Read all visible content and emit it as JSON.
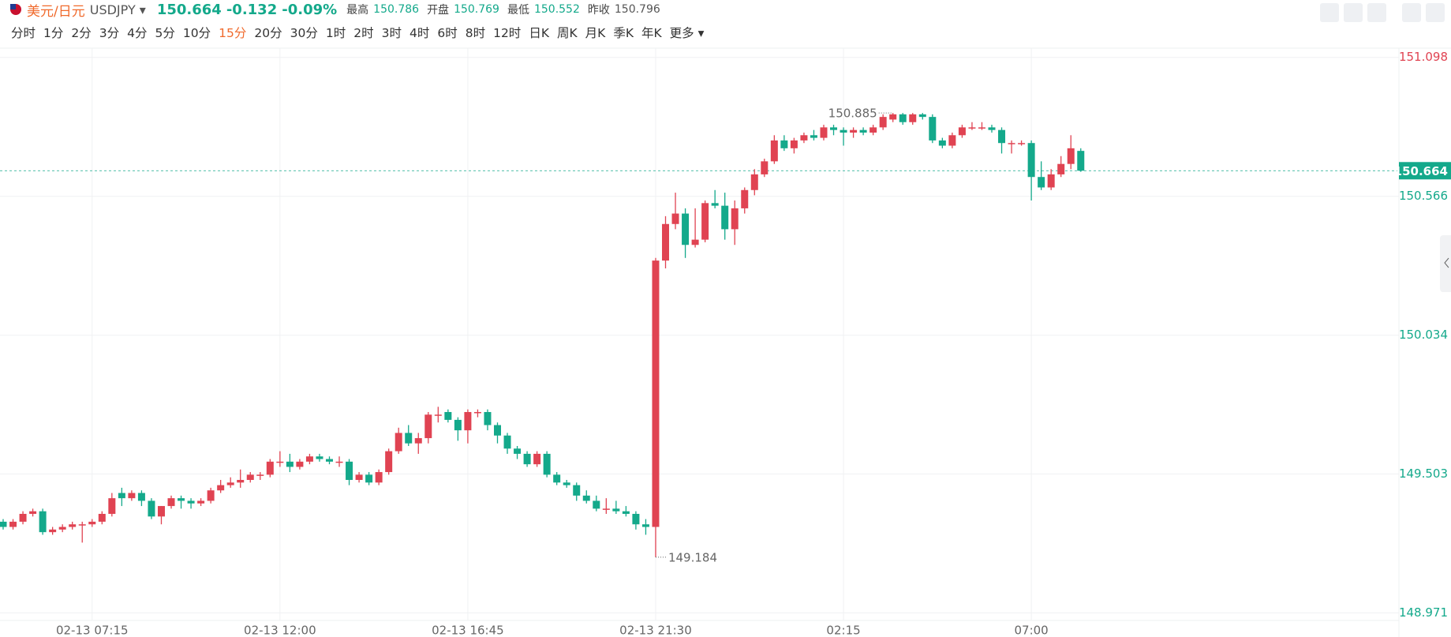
{
  "header": {
    "symbol_name": "美元/日元",
    "symbol_code": "USDJPY",
    "price": 150.664,
    "change": -0.132,
    "change_pct": "-0.09%",
    "high_label": "最高",
    "high": 150.786,
    "open_label": "开盘",
    "open": 150.769,
    "low_label": "最低",
    "low": 150.552,
    "prev_close_label": "昨收",
    "prev_close": 150.796
  },
  "toolbar": {
    "intervals": [
      "分时",
      "1分",
      "2分",
      "3分",
      "4分",
      "5分",
      "10分",
      "15分",
      "20分",
      "30分",
      "1时",
      "2时",
      "3时",
      "4时",
      "6时",
      "8时",
      "12时",
      "日K",
      "周K",
      "月K",
      "季K",
      "年K"
    ],
    "more": "更多"
  },
  "chart_data": {
    "type": "candlestick",
    "up_color": "#e04352",
    "down_color": "#14a98b",
    "categories": [
      null,
      null,
      null,
      null,
      null,
      null,
      null,
      null,
      null,
      "02-13 07:15",
      null,
      null,
      null,
      null,
      null,
      null,
      null,
      null,
      null,
      null,
      null,
      null,
      null,
      null,
      null,
      null,
      null,
      null,
      "02-13 12:00",
      null,
      null,
      null,
      null,
      null,
      null,
      null,
      null,
      null,
      null,
      null,
      null,
      null,
      null,
      null,
      null,
      null,
      null,
      "02-13 16:45",
      null,
      null,
      null,
      null,
      null,
      null,
      null,
      null,
      null,
      null,
      null,
      null,
      null,
      null,
      null,
      null,
      null,
      null,
      "02-13 21:30",
      null,
      null,
      null,
      null,
      null,
      null,
      null,
      null,
      null,
      null,
      null,
      null,
      null,
      null,
      null,
      null,
      null,
      null,
      "02:15",
      null,
      null,
      null,
      null,
      null,
      null,
      null,
      null,
      null,
      null,
      null,
      null,
      null,
      null,
      null,
      null,
      null,
      null,
      "07:00",
      null,
      null,
      null,
      null,
      null
    ],
    "open": [
      149.32,
      149.3,
      149.32,
      149.35,
      149.36,
      149.28,
      149.29,
      149.3,
      149.31,
      149.31,
      149.32,
      149.35,
      149.43,
      149.41,
      149.43,
      149.4,
      149.34,
      149.38,
      149.41,
      149.4,
      149.39,
      149.4,
      149.44,
      149.46,
      149.47,
      149.48,
      149.5,
      149.5,
      149.55,
      149.55,
      149.53,
      149.55,
      149.57,
      149.56,
      149.55,
      149.55,
      149.48,
      149.5,
      149.47,
      149.51,
      149.59,
      149.66,
      149.62,
      149.64,
      149.73,
      149.74,
      149.71,
      149.67,
      149.74,
      149.74,
      149.69,
      149.65,
      149.6,
      149.58,
      149.54,
      149.58,
      149.5,
      149.47,
      149.46,
      149.42,
      149.4,
      149.37,
      149.37,
      149.36,
      149.35,
      149.31,
      149.3,
      150.32,
      150.46,
      150.5,
      150.38,
      150.4,
      150.54,
      150.53,
      150.44,
      150.52,
      150.59,
      150.65,
      150.7,
      150.78,
      150.75,
      150.78,
      150.8,
      150.79,
      150.83,
      150.82,
      150.81,
      150.82,
      150.81,
      150.83,
      150.86,
      150.88,
      150.85,
      150.88,
      150.87,
      150.78,
      150.76,
      150.8,
      150.83,
      150.83,
      150.83,
      150.82,
      150.77,
      150.77,
      150.77,
      150.64,
      150.6,
      150.65,
      150.69,
      150.74
    ],
    "high": [
      149.33,
      149.33,
      149.36,
      149.37,
      149.37,
      149.3,
      149.31,
      149.32,
      149.32,
      149.33,
      149.36,
      149.43,
      149.45,
      149.44,
      149.44,
      149.41,
      149.38,
      149.42,
      149.42,
      149.41,
      149.41,
      149.45,
      149.48,
      149.49,
      149.52,
      149.51,
      149.51,
      149.56,
      149.59,
      149.58,
      149.56,
      149.58,
      149.58,
      149.57,
      149.57,
      149.56,
      149.51,
      149.51,
      149.52,
      149.6,
      149.68,
      149.69,
      149.66,
      149.74,
      149.76,
      149.75,
      149.72,
      149.75,
      149.75,
      149.75,
      149.7,
      149.66,
      149.61,
      149.59,
      149.59,
      149.59,
      149.51,
      149.48,
      149.47,
      149.44,
      149.42,
      149.41,
      149.4,
      149.38,
      149.36,
      149.33,
      150.33,
      150.49,
      150.58,
      150.52,
      150.52,
      150.55,
      150.59,
      150.58,
      150.55,
      150.6,
      150.67,
      150.71,
      150.8,
      150.8,
      150.79,
      150.81,
      150.82,
      150.84,
      150.84,
      150.83,
      150.83,
      150.83,
      150.84,
      150.88,
      150.885,
      150.885,
      150.885,
      150.885,
      150.88,
      150.79,
      150.81,
      150.84,
      150.85,
      150.85,
      150.84,
      150.83,
      150.78,
      150.78,
      150.78,
      150.7,
      150.67,
      150.72,
      150.8,
      150.75
    ],
    "low": [
      149.29,
      149.29,
      149.31,
      149.34,
      149.27,
      149.27,
      149.28,
      149.29,
      149.24,
      149.3,
      149.31,
      149.34,
      149.38,
      149.4,
      149.38,
      149.33,
      149.31,
      149.37,
      149.37,
      149.37,
      149.38,
      149.39,
      149.43,
      149.45,
      149.45,
      149.47,
      149.48,
      149.49,
      149.53,
      149.51,
      149.52,
      149.54,
      149.55,
      149.54,
      149.53,
      149.46,
      149.47,
      149.46,
      149.46,
      149.5,
      149.58,
      149.61,
      149.58,
      149.62,
      149.7,
      149.7,
      149.63,
      149.62,
      149.72,
      149.67,
      149.62,
      149.58,
      149.56,
      149.53,
      149.53,
      149.49,
      149.46,
      149.45,
      149.4,
      149.39,
      149.36,
      149.35,
      149.35,
      149.34,
      149.29,
      149.27,
      149.184,
      150.29,
      150.44,
      150.33,
      150.37,
      150.39,
      150.52,
      150.4,
      150.38,
      150.5,
      150.57,
      150.64,
      150.69,
      150.74,
      150.73,
      150.77,
      150.78,
      150.78,
      150.8,
      150.76,
      150.79,
      150.8,
      150.8,
      150.82,
      150.85,
      150.84,
      150.84,
      150.86,
      150.77,
      150.75,
      150.75,
      150.79,
      150.82,
      150.82,
      150.81,
      150.73,
      150.73,
      150.76,
      150.55,
      150.59,
      150.59,
      150.64,
      150.67,
      150.66
    ],
    "close": [
      149.3,
      149.32,
      149.35,
      149.36,
      149.28,
      149.29,
      149.3,
      149.31,
      149.31,
      149.32,
      149.35,
      149.41,
      149.41,
      149.43,
      149.4,
      149.34,
      149.38,
      149.41,
      149.4,
      149.39,
      149.4,
      149.44,
      149.46,
      149.47,
      149.48,
      149.5,
      149.5,
      149.55,
      149.55,
      149.53,
      149.55,
      149.57,
      149.56,
      149.55,
      149.55,
      149.48,
      149.5,
      149.47,
      149.51,
      149.59,
      149.66,
      149.62,
      149.64,
      149.73,
      149.73,
      149.71,
      149.67,
      149.74,
      149.74,
      149.69,
      149.65,
      149.6,
      149.58,
      149.54,
      149.58,
      149.5,
      149.47,
      149.46,
      149.42,
      149.4,
      149.37,
      149.37,
      149.36,
      149.35,
      149.31,
      149.3,
      150.32,
      150.46,
      150.5,
      150.38,
      150.4,
      150.54,
      150.53,
      150.44,
      150.52,
      150.59,
      150.65,
      150.7,
      150.78,
      150.75,
      150.78,
      150.8,
      150.79,
      150.83,
      150.82,
      150.81,
      150.82,
      150.81,
      150.83,
      150.87,
      150.88,
      150.85,
      150.88,
      150.87,
      150.78,
      150.76,
      150.8,
      150.83,
      150.83,
      150.83,
      150.82,
      150.77,
      150.77,
      150.77,
      150.64,
      150.6,
      150.65,
      150.69,
      150.75,
      150.664
    ],
    "ylim": [
      148.971,
      151.098
    ],
    "yticks": [
      148.971,
      149.503,
      150.034,
      150.566,
      151.098
    ],
    "grid": true,
    "current_price": 150.664,
    "max_annotation": 150.885,
    "min_annotation": 149.184
  }
}
